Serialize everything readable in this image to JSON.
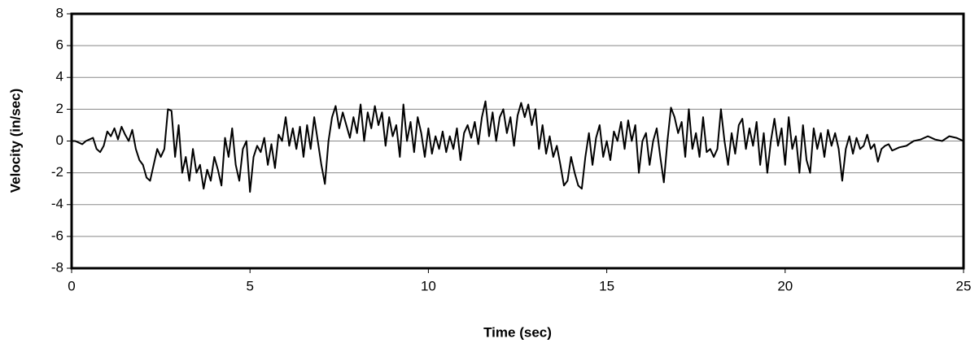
{
  "chart_data": {
    "type": "line",
    "x_label": "Time (sec)",
    "y_label": "Velocity (in/sec)",
    "color": "#000000",
    "grid": true,
    "xlim": [
      0,
      25
    ],
    "ylim": [
      -8,
      8
    ],
    "xticks": [
      0,
      5,
      10,
      15,
      20,
      25
    ],
    "yticks": [
      -8,
      -6,
      -4,
      -2,
      0,
      2,
      4,
      6,
      8
    ],
    "x": [
      0,
      0.1,
      0.2,
      0.3,
      0.4,
      0.5,
      0.6,
      0.7,
      0.8,
      0.9,
      1,
      1.1,
      1.2,
      1.3,
      1.4,
      1.5,
      1.6,
      1.7,
      1.8,
      1.9,
      2,
      2.1,
      2.2,
      2.3,
      2.4,
      2.5,
      2.6,
      2.7,
      2.8,
      2.9,
      3,
      3.1,
      3.2,
      3.3,
      3.4,
      3.5,
      3.6,
      3.7,
      3.8,
      3.9,
      4,
      4.1,
      4.2,
      4.3,
      4.4,
      4.5,
      4.6,
      4.7,
      4.8,
      4.9,
      5,
      5.1,
      5.2,
      5.3,
      5.4,
      5.5,
      5.6,
      5.7,
      5.8,
      5.9,
      6,
      6.1,
      6.2,
      6.3,
      6.4,
      6.5,
      6.6,
      6.7,
      6.8,
      6.9,
      7,
      7.1,
      7.2,
      7.3,
      7.4,
      7.5,
      7.6,
      7.7,
      7.8,
      7.9,
      8,
      8.1,
      8.2,
      8.3,
      8.4,
      8.5,
      8.6,
      8.7,
      8.8,
      8.9,
      9,
      9.1,
      9.2,
      9.3,
      9.4,
      9.5,
      9.6,
      9.7,
      9.8,
      9.9,
      10,
      10.1,
      10.2,
      10.3,
      10.4,
      10.5,
      10.6,
      10.7,
      10.8,
      10.9,
      11,
      11.1,
      11.2,
      11.3,
      11.4,
      11.5,
      11.6,
      11.7,
      11.8,
      11.9,
      12,
      12.1,
      12.2,
      12.3,
      12.4,
      12.5,
      12.6,
      12.7,
      12.8,
      12.9,
      13,
      13.1,
      13.2,
      13.3,
      13.4,
      13.5,
      13.6,
      13.7,
      13.8,
      13.9,
      14,
      14.1,
      14.2,
      14.3,
      14.4,
      14.5,
      14.6,
      14.7,
      14.8,
      14.9,
      15,
      15.1,
      15.2,
      15.3,
      15.4,
      15.5,
      15.6,
      15.7,
      15.8,
      15.9,
      16,
      16.1,
      16.2,
      16.3,
      16.4,
      16.5,
      16.6,
      16.7,
      16.8,
      16.9,
      17,
      17.1,
      17.2,
      17.3,
      17.4,
      17.5,
      17.6,
      17.7,
      17.8,
      17.9,
      18,
      18.1,
      18.2,
      18.3,
      18.4,
      18.5,
      18.6,
      18.7,
      18.8,
      18.9,
      19,
      19.1,
      19.2,
      19.3,
      19.4,
      19.5,
      19.6,
      19.7,
      19.8,
      19.9,
      20,
      20.1,
      20.2,
      20.3,
      20.4,
      20.5,
      20.6,
      20.7,
      20.8,
      20.9,
      21,
      21.1,
      21.2,
      21.3,
      21.4,
      21.5,
      21.6,
      21.7,
      21.8,
      21.9,
      22,
      22.1,
      22.2,
      22.3,
      22.4,
      22.5,
      22.6,
      22.7,
      22.8,
      22.9,
      23,
      23.2,
      23.4,
      23.6,
      23.8,
      24,
      24.2,
      24.4,
      24.6,
      24.8,
      25
    ],
    "values": [
      0,
      0,
      -0.1,
      -0.2,
      0,
      0.1,
      0.2,
      -0.5,
      -0.7,
      -0.3,
      0.6,
      0.3,
      0.8,
      0.1,
      0.9,
      0.4,
      0,
      0.7,
      -0.5,
      -1.2,
      -1.5,
      -2.3,
      -2.5,
      -1.5,
      -0.5,
      -1.0,
      -0.5,
      2.0,
      1.9,
      -1.0,
      1.0,
      -2.0,
      -1.0,
      -2.5,
      -0.5,
      -2.0,
      -1.5,
      -3.0,
      -1.8,
      -2.5,
      -1.0,
      -1.8,
      -2.8,
      0.2,
      -1.0,
      0.8,
      -1.5,
      -2.5,
      -0.5,
      0,
      -3.2,
      -1.0,
      -0.3,
      -0.7,
      0.2,
      -1.5,
      -0.2,
      -1.7,
      0.4,
      0,
      1.5,
      -0.3,
      0.8,
      -0.5,
      0.9,
      -1.0,
      1.0,
      -0.5,
      1.5,
      0,
      -1.5,
      -2.7,
      0,
      1.5,
      2.2,
      0.8,
      1.8,
      1.0,
      0.2,
      1.5,
      0.5,
      2.3,
      0,
      1.8,
      0.8,
      2.2,
      1.0,
      1.8,
      -0.3,
      1.5,
      0.3,
      1.0,
      -1.0,
      2.3,
      0,
      1.2,
      -0.7,
      1.5,
      0.5,
      -1.0,
      0.8,
      -0.8,
      0.3,
      -0.5,
      0.6,
      -0.7,
      0.3,
      -0.5,
      0.8,
      -1.2,
      0.5,
      1.0,
      0.2,
      1.2,
      -0.2,
      1.5,
      2.5,
      0.3,
      1.8,
      0,
      1.5,
      2.0,
      0.5,
      1.5,
      -0.3,
      1.6,
      2.4,
      1.5,
      2.3,
      1.0,
      2.0,
      -0.5,
      1.0,
      -0.8,
      0.3,
      -1.0,
      -0.3,
      -1.5,
      -2.8,
      -2.5,
      -1.0,
      -2.0,
      -2.8,
      -3.0,
      -1.0,
      0.5,
      -1.5,
      0.2,
      1.0,
      -1.0,
      0,
      -1.2,
      0.6,
      0,
      1.2,
      -0.5,
      1.3,
      0,
      1.0,
      -2.0,
      0,
      0.5,
      -1.5,
      0,
      0.8,
      -1.0,
      -2.6,
      0,
      2.1,
      1.5,
      0.5,
      1.2,
      -1.0,
      2.0,
      -0.5,
      0.5,
      -1.0,
      1.5,
      -0.7,
      -0.5,
      -1.0,
      -0.5,
      2.0,
      0,
      -1.5,
      0.5,
      -0.8,
      1.0,
      1.4,
      -0.5,
      0.8,
      -0.3,
      1.2,
      -1.5,
      0.5,
      -2.0,
      0,
      1.4,
      -0.3,
      0.8,
      -1.5,
      1.5,
      -0.5,
      0.3,
      -2.0,
      1.0,
      -1.2,
      -2.0,
      0.8,
      -0.5,
      0.5,
      -1.0,
      0.7,
      -0.3,
      0.5,
      -0.5,
      -2.5,
      -0.5,
      0.3,
      -0.8,
      0.2,
      -0.5,
      -0.3,
      0.4,
      -0.5,
      -0.2,
      -1.3,
      -0.5,
      -0.3,
      -0.2,
      -0.6,
      -0.4,
      -0.3,
      0,
      0.1,
      0.3,
      0.1,
      0,
      0.3,
      0.2,
      0
    ]
  }
}
